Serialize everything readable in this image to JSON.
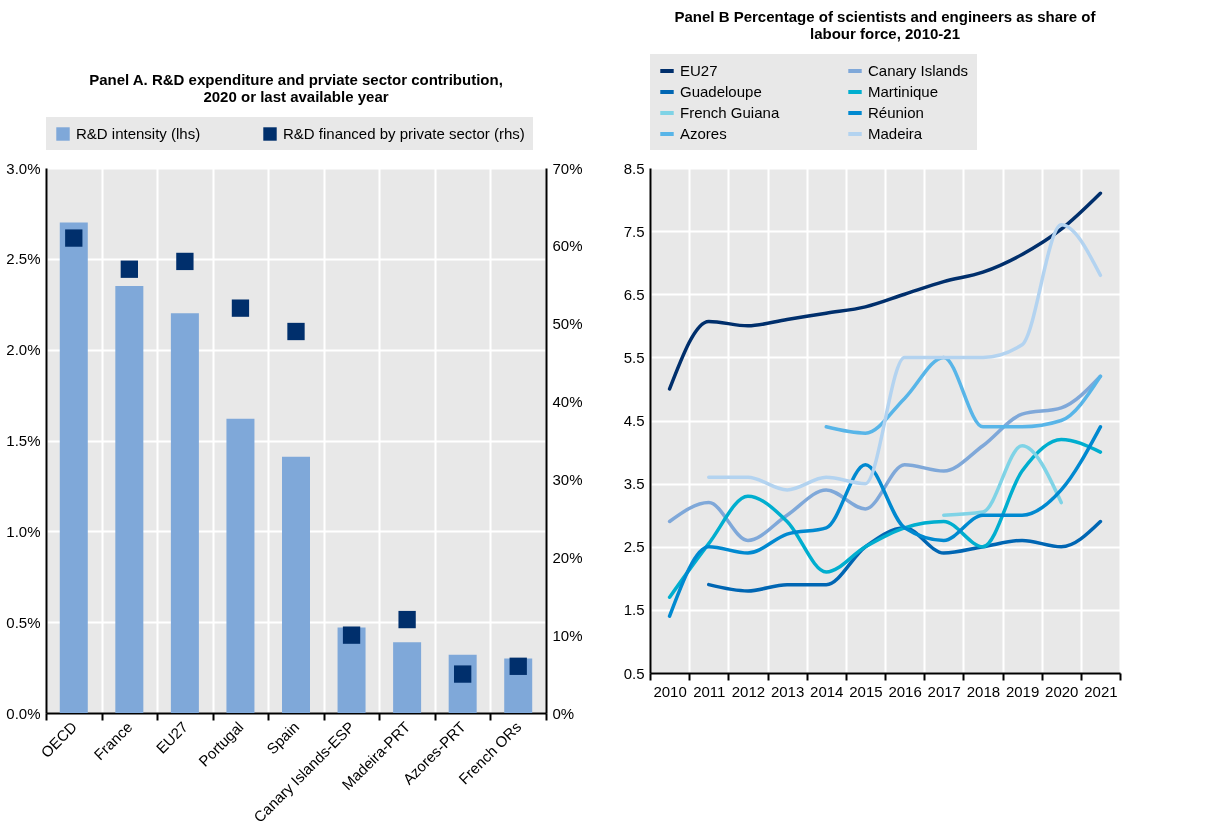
{
  "chart_data": [
    {
      "type": "bar",
      "title": "Panel A. R&D expenditure and prviate sector contribution, 2020 or last available year",
      "categories": [
        "OECD",
        "France",
        "EU27",
        "Portugal",
        "Spain",
        "Canary Islands-ESP",
        "Madeira-PRT",
        "Azores-PRT",
        "French ORs"
      ],
      "series": [
        {
          "name": "R&D intensity (lhs)",
          "type": "bar",
          "color": "#7fa8d9",
          "values": [
            2.7,
            2.35,
            2.2,
            1.62,
            1.41,
            0.47,
            0.39,
            0.32,
            0.3
          ]
        },
        {
          "name": "R&D financed by private sector (rhs)",
          "type": "scatter",
          "axis": "y2",
          "color": "#002f6c",
          "values": [
            61,
            57,
            58,
            52,
            49,
            10,
            12,
            5,
            6
          ]
        }
      ],
      "marker": "square",
      "ylim": [
        0,
        3
      ],
      "yticks": [
        {
          "value": 0,
          "label": "0.0%"
        },
        {
          "value": 0.5,
          "label": "0.5%"
        },
        {
          "value": 1,
          "label": "1.0%"
        },
        {
          "value": 1.5,
          "label": "1.5%"
        },
        {
          "value": 2,
          "label": "2.0%"
        },
        {
          "value": 2.5,
          "label": "2.5%"
        },
        {
          "value": 3,
          "label": "3.0%"
        }
      ],
      "y2lim": [
        0,
        70
      ],
      "y2ticks": [
        {
          "value": 0,
          "label": "0%"
        },
        {
          "value": 10,
          "label": "10%"
        },
        {
          "value": 20,
          "label": "20%"
        },
        {
          "value": 30,
          "label": "30%"
        },
        {
          "value": 40,
          "label": "40%"
        },
        {
          "value": 50,
          "label": "50%"
        },
        {
          "value": 60,
          "label": "60%"
        },
        {
          "value": 70,
          "label": "70%"
        }
      ],
      "grid": true,
      "legend": "top"
    },
    {
      "type": "line",
      "title": "Panel B Percentage of scientists and engineers as share of labour force, 2010-21",
      "categories": [
        "2010",
        "2011",
        "2012",
        "2013",
        "2014",
        "2015",
        "2016",
        "2017",
        "2018",
        "2019",
        "2020",
        "2021"
      ],
      "series": [
        {
          "name": "EU27",
          "color": "#002f6c",
          "values": [
            5.0,
            6.07,
            6.0,
            6.1,
            6.2,
            6.3,
            6.5,
            6.7,
            6.85,
            7.13,
            7.53,
            8.1
          ]
        },
        {
          "name": "Canary Islands",
          "color": "#7fa8d9",
          "values": [
            2.9,
            3.2,
            2.6,
            3.0,
            3.4,
            3.1,
            3.8,
            3.7,
            4.1,
            4.6,
            4.7,
            5.2
          ]
        },
        {
          "name": "Guadeloupe",
          "color": "#0066b3",
          "values": [
            null,
            1.9,
            1.8,
            1.9,
            1.9,
            2.5,
            2.8,
            2.4,
            2.5,
            2.6,
            2.5,
            2.9
          ]
        },
        {
          "name": "Martinique",
          "color": "#00aecf",
          "values": [
            1.7,
            2.55,
            3.3,
            2.9,
            2.1,
            2.5,
            2.8,
            2.9,
            2.5,
            3.7,
            4.2,
            4.0
          ]
        },
        {
          "name": "French Guiana",
          "color": "#7fd3e6",
          "values": [
            null,
            null,
            null,
            null,
            null,
            null,
            null,
            3.0,
            3.05,
            4.1,
            3.2,
            null
          ]
        },
        {
          "name": "Réunion",
          "color": "#0089d0",
          "values": [
            1.4,
            2.5,
            2.4,
            2.7,
            2.8,
            3.8,
            2.8,
            2.6,
            3.0,
            3.0,
            3.4,
            4.4
          ]
        },
        {
          "name": "Azores",
          "color": "#58b5e8",
          "values": [
            null,
            null,
            null,
            null,
            4.4,
            4.3,
            4.85,
            5.5,
            4.4,
            4.4,
            4.5,
            5.2
          ]
        },
        {
          "name": "Madeira",
          "color": "#b3d3f0",
          "values": [
            null,
            3.6,
            3.6,
            3.4,
            3.6,
            3.5,
            5.5,
            5.5,
            5.5,
            5.7,
            7.6,
            6.8
          ]
        }
      ],
      "ylim": [
        0.5,
        8.5
      ],
      "yticks": [
        0.5,
        1.5,
        2.5,
        3.5,
        4.5,
        5.5,
        6.5,
        7.5,
        8.5
      ],
      "grid": true,
      "legend": "top"
    }
  ]
}
